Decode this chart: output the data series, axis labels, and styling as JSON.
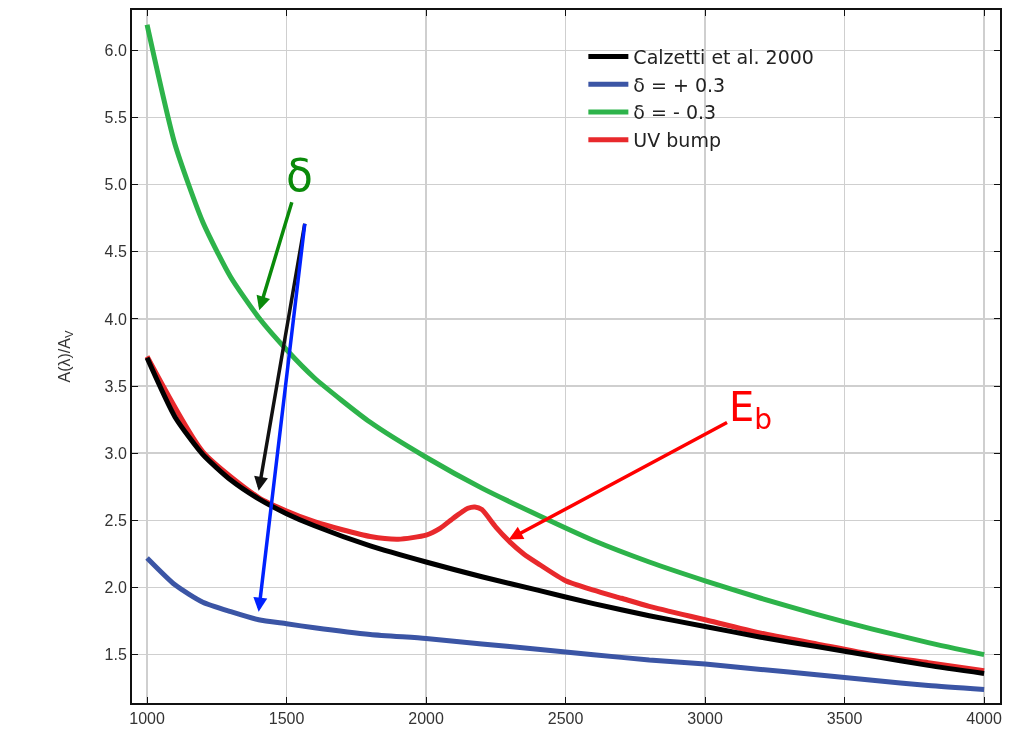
{
  "chart_data": {
    "type": "line",
    "ylabel": "A(λ)/A$_{V}$",
    "x": [
      1000,
      1100,
      1200,
      1300,
      1400,
      1500,
      1600,
      1800,
      2000,
      2200,
      2400,
      2600,
      2800,
      3000,
      3200,
      3400,
      3600,
      3800,
      4000
    ],
    "series": [
      {
        "name": "Calzetti et al. 2000",
        "color": "#000000",
        "values": [
          3.71,
          3.27,
          2.99,
          2.8,
          2.66,
          2.55,
          2.46,
          2.31,
          2.19,
          2.08,
          1.98,
          1.88,
          1.79,
          1.71,
          1.63,
          1.56,
          1.49,
          1.42,
          1.36
        ]
      },
      {
        "name": "δ = + 0.3",
        "color": "#3b55a5",
        "values": [
          2.22,
          2.02,
          1.89,
          1.82,
          1.76,
          1.73,
          1.7,
          1.65,
          1.62,
          1.58,
          1.54,
          1.5,
          1.46,
          1.43,
          1.39,
          1.35,
          1.31,
          1.27,
          1.24
        ]
      },
      {
        "name": "δ = - 0.3",
        "color": "#2db34a",
        "values": [
          6.19,
          5.3,
          4.72,
          4.31,
          4.01,
          3.77,
          3.56,
          3.23,
          2.97,
          2.74,
          2.54,
          2.35,
          2.19,
          2.05,
          1.92,
          1.8,
          1.69,
          1.59,
          1.5
        ]
      },
      {
        "name": "UV bump",
        "color": "#e8292c",
        "x": [
          1000,
          1200,
          1400,
          1500,
          1600,
          1700,
          1800,
          1900,
          2000,
          2050,
          2100,
          2150,
          2175,
          2200,
          2250,
          2300,
          2350,
          2400,
          2500,
          2600,
          2700,
          2800,
          3000,
          3200,
          3400,
          3600,
          3800,
          4000
        ],
        "values": [
          3.72,
          3.01,
          2.67,
          2.57,
          2.49,
          2.43,
          2.38,
          2.36,
          2.39,
          2.44,
          2.52,
          2.59,
          2.6,
          2.58,
          2.45,
          2.34,
          2.25,
          2.18,
          2.05,
          1.98,
          1.92,
          1.86,
          1.76,
          1.66,
          1.58,
          1.5,
          1.44,
          1.38
        ]
      }
    ],
    "xlim": [
      946,
      4057
    ],
    "xticks": [
      1000,
      1500,
      2000,
      2500,
      3000,
      3500,
      4000
    ],
    "ylim": [
      1.14,
      6.3
    ],
    "yticks": [
      {
        "value": 1.5,
        "label": "1.5"
      },
      {
        "value": 2,
        "label": "2.0"
      },
      {
        "value": 2.5,
        "label": "2.5"
      },
      {
        "value": 3,
        "label": "3.0"
      },
      {
        "value": 3.5,
        "label": "3.5"
      },
      {
        "value": 4,
        "label": "4.0"
      },
      {
        "value": 4.5,
        "label": "4.5"
      },
      {
        "value": 5,
        "label": "5.0"
      },
      {
        "value": 5.5,
        "label": "5.5"
      },
      {
        "value": 6,
        "label": "6.0"
      }
    ],
    "grid": true,
    "legend": "top right",
    "marker": "none",
    "line_style": "solid",
    "annotations": [
      {
        "text": "δ",
        "x": 1400,
        "y": 4.05
      },
      {
        "text": "E$_{b}$",
        "x": 2290,
        "y": 2.35
      }
    ]
  }
}
